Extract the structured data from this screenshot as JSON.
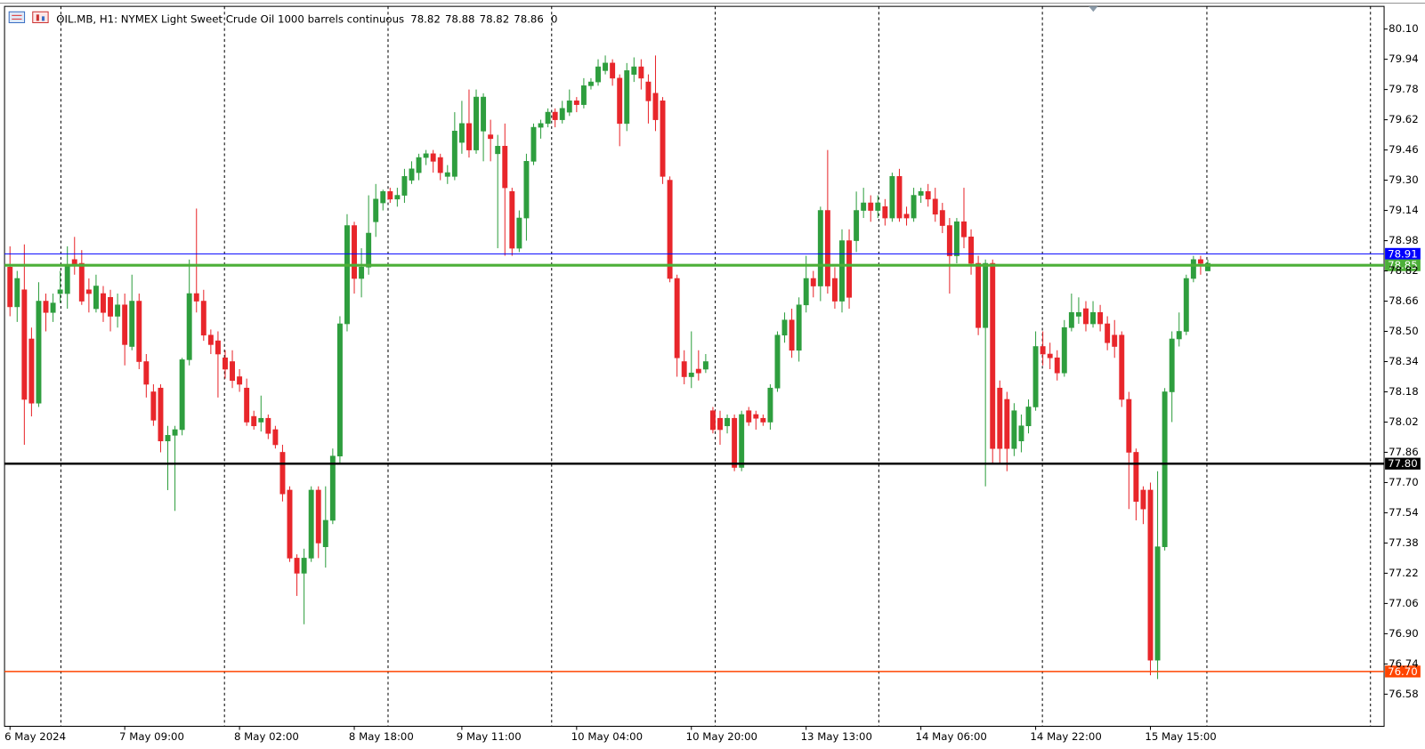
{
  "chart_data": {
    "type": "candlestick",
    "title": "OIL.MB, H1: NYMEX Light Sweet Crude Oil 1000 barrels continuous",
    "header_value": 0,
    "up_color": "#2e9e3e",
    "down_color": "#e8262b",
    "ylim": [
      76.41,
      80.22
    ],
    "yticks": [
      {
        "value": 80.1,
        "label": "80.10"
      },
      79.94,
      79.78,
      79.62,
      79.46,
      {
        "value": 79.3,
        "label": "79.30"
      },
      79.14,
      78.98,
      78.82,
      78.66,
      {
        "value": 78.5,
        "label": "78.50"
      },
      78.34,
      78.18,
      78.02,
      77.86,
      {
        "value": 77.7,
        "label": "77.70"
      },
      77.54,
      77.38,
      77.22,
      77.06,
      {
        "value": 76.9,
        "label": "76.90"
      },
      76.74,
      76.58
    ],
    "levels": [
      {
        "value": 78.91,
        "label": "78.91",
        "color": "#0000ff"
      },
      {
        "value": 78.85,
        "label": "78.85",
        "color": "#4caf38"
      },
      {
        "value": 77.8,
        "label": "77.80",
        "color": "#000000"
      },
      {
        "value": 76.7,
        "label": "76.70",
        "color": "#ff4500"
      }
    ],
    "categories": [
      "6 May 2024",
      null,
      null,
      null,
      null,
      null,
      null,
      null,
      null,
      null,
      null,
      null,
      null,
      null,
      null,
      null,
      "7 May 09:00",
      null,
      null,
      null,
      null,
      null,
      null,
      null,
      null,
      null,
      null,
      null,
      null,
      null,
      null,
      null,
      "8 May 02:00",
      null,
      null,
      null,
      null,
      null,
      null,
      null,
      null,
      null,
      null,
      null,
      null,
      null,
      null,
      null,
      "8 May 18:00",
      null,
      null,
      null,
      null,
      null,
      null,
      null,
      null,
      null,
      null,
      null,
      null,
      null,
      null,
      "9 May 11:00",
      null,
      null,
      null,
      null,
      null,
      null,
      null,
      null,
      null,
      null,
      null,
      null,
      null,
      null,
      null,
      "10 May 04:00",
      null,
      null,
      null,
      null,
      null,
      null,
      null,
      null,
      null,
      null,
      null,
      null,
      null,
      null,
      null,
      "10 May 20:00",
      null,
      null,
      null,
      null,
      null,
      null,
      null,
      null,
      null,
      null,
      null,
      null,
      null,
      null,
      null,
      "13 May 13:00",
      null,
      null,
      null,
      null,
      null,
      null,
      null,
      null,
      null,
      null,
      null,
      null,
      null,
      null,
      null,
      "14 May 06:00",
      null,
      null,
      null,
      null,
      null,
      null,
      null,
      null,
      null,
      null,
      null,
      null,
      null,
      null,
      null,
      "14 May 22:00",
      null,
      null,
      null,
      null,
      null,
      null,
      null,
      null,
      null,
      null,
      null,
      null,
      null,
      null,
      null,
      "15 May 15:00",
      null,
      null,
      null,
      null,
      null,
      null,
      null,
      null
    ],
    "open": [
      78.84,
      78.63,
      78.72,
      78.46,
      78.12,
      78.66,
      78.6,
      78.7,
      78.7,
      78.88,
      78.86,
      78.72,
      78.62,
      78.7,
      78.68,
      78.58,
      78.64,
      78.42,
      78.66,
      78.34,
      78.18,
      78.2,
      77.92,
      77.95,
      77.98,
      78.35,
      78.7,
      78.66,
      78.48,
      78.45,
      78.36,
      78.34,
      78.26,
      78.2,
      78.05,
      78.02,
      78.04,
      77.98,
      77.86,
      77.66,
      77.3,
      77.22,
      77.3,
      77.66,
      77.36,
      77.5,
      77.84,
      78.54,
      79.06,
      78.78,
      78.84,
      79.08,
      79.18,
      79.24,
      79.2,
      79.22,
      79.3,
      79.34,
      79.42,
      79.44,
      79.42,
      79.32,
      79.32,
      79.5,
      79.6,
      79.46,
      79.56,
      79.54,
      79.44,
      79.48,
      79.24,
      78.94,
      79.1,
      79.4,
      79.58,
      79.6,
      79.66,
      79.62,
      79.66,
      79.72,
      79.7,
      79.8,
      79.82,
      79.88,
      79.92,
      79.84,
      79.6,
      79.86,
      79.9,
      79.82,
      79.76,
      79.72,
      79.3,
      78.78,
      78.34,
      78.26,
      78.3,
      78.3,
      78.08,
      78.04,
      78.0,
      78.04,
      77.78,
      78.08,
      78.06,
      78.04,
      78.02,
      78.2,
      78.48,
      78.56,
      78.4,
      78.64,
      78.78,
      78.74,
      79.14,
      78.78,
      78.66,
      78.98,
      78.98,
      79.14,
      79.18,
      79.14,
      79.16,
      79.1,
      79.32,
      79.12,
      79.1,
      79.22,
      79.24,
      79.2,
      79.14,
      79.06,
      78.9,
      79.08,
      79.0,
      78.86,
      78.52,
      78.86,
      78.2,
      78.14,
      77.88,
      77.92,
      78.0,
      78.1,
      78.42,
      78.38,
      78.36,
      78.28,
      78.52,
      78.58,
      78.62,
      78.54,
      78.6,
      78.54,
      78.48,
      78.48,
      78.14,
      77.86,
      77.66,
      77.66,
      76.76,
      77.36,
      78.18,
      78.46,
      78.5,
      78.78,
      78.88,
      78.82
    ],
    "high": [
      78.95,
      78.82,
      78.96,
      78.52,
      78.76,
      78.7,
      78.7,
      78.82,
      78.95,
      79.0,
      78.93,
      78.78,
      78.8,
      78.74,
      78.72,
      78.7,
      78.7,
      78.8,
      78.7,
      78.38,
      78.22,
      78.22,
      78.0,
      78.0,
      78.36,
      78.88,
      79.15,
      78.72,
      78.51,
      78.5,
      78.4,
      78.4,
      78.3,
      78.25,
      78.08,
      78.16,
      78.06,
      78.0,
      77.9,
      77.68,
      77.32,
      77.35,
      77.68,
      77.68,
      77.68,
      77.88,
      78.58,
      79.12,
      79.08,
      78.94,
      79.22,
      79.28,
      79.25,
      79.26,
      79.26,
      79.36,
      79.4,
      79.44,
      79.46,
      79.46,
      79.44,
      79.38,
      79.66,
      79.72,
      79.78,
      79.78,
      79.76,
      79.62,
      79.54,
      79.6,
      79.26,
      79.14,
      79.44,
      79.6,
      79.62,
      79.68,
      79.68,
      79.72,
      79.78,
      79.74,
      79.84,
      79.84,
      79.94,
      79.96,
      79.94,
      79.86,
      79.92,
      79.95,
      79.94,
      79.86,
      79.96,
      79.74,
      79.32,
      78.8,
      78.4,
      78.5,
      78.4,
      78.38,
      78.1,
      78.08,
      78.06,
      78.06,
      78.08,
      78.1,
      78.08,
      78.06,
      78.22,
      78.5,
      78.6,
      78.62,
      78.68,
      78.9,
      78.82,
      79.16,
      79.46,
      78.84,
      79.04,
      79.04,
      79.24,
      79.26,
      79.22,
      79.22,
      79.2,
      79.34,
      79.36,
      79.16,
      79.26,
      79.26,
      79.28,
      79.26,
      79.18,
      79.1,
      79.1,
      79.26,
      79.04,
      78.9,
      78.88,
      78.88,
      78.24,
      78.18,
      78.12,
      78.06,
      78.14,
      78.5,
      78.5,
      78.44,
      78.4,
      78.56,
      78.7,
      78.68,
      78.66,
      78.66,
      78.64,
      78.58,
      78.56,
      78.5,
      78.18,
      77.88,
      77.68,
      77.7,
      77.76,
      78.2,
      78.5,
      78.6,
      78.8,
      78.9,
      78.9,
      78.88
    ],
    "low": [
      78.58,
      78.55,
      77.9,
      78.05,
      78.1,
      78.5,
      78.55,
      78.65,
      78.62,
      78.8,
      78.64,
      78.6,
      78.6,
      78.55,
      78.5,
      78.52,
      78.32,
      78.4,
      78.3,
      78.15,
      78.0,
      77.86,
      77.66,
      77.55,
      77.95,
      78.32,
      78.6,
      78.45,
      78.38,
      78.15,
      78.25,
      78.2,
      78.18,
      78.0,
      77.98,
      77.97,
      77.93,
      77.88,
      77.6,
      77.28,
      77.1,
      76.95,
      77.28,
      77.3,
      77.25,
      77.48,
      77.8,
      78.5,
      78.7,
      78.68,
      78.8,
      79.0,
      79.14,
      79.18,
      79.16,
      79.18,
      79.28,
      79.3,
      79.38,
      79.34,
      79.3,
      79.28,
      79.3,
      79.44,
      79.42,
      79.44,
      79.4,
      79.4,
      78.94,
      78.9,
      78.9,
      78.92,
      78.98,
      79.38,
      79.52,
      79.58,
      79.58,
      79.6,
      79.64,
      79.66,
      79.68,
      79.78,
      79.8,
      79.86,
      79.8,
      79.48,
      79.56,
      79.82,
      79.78,
      79.6,
      79.56,
      79.28,
      78.76,
      78.26,
      78.22,
      78.2,
      78.24,
      78.28,
      77.96,
      77.9,
      77.96,
      77.76,
      77.76,
      78.0,
      77.98,
      78.0,
      77.98,
      78.18,
      78.44,
      78.36,
      78.34,
      78.6,
      78.68,
      78.66,
      78.7,
      78.62,
      78.6,
      78.62,
      78.92,
      79.1,
      79.08,
      79.1,
      79.06,
      79.08,
      79.08,
      79.06,
      79.08,
      79.18,
      79.16,
      79.08,
      79.02,
      78.7,
      78.86,
      78.94,
      78.8,
      78.48,
      77.68,
      77.8,
      77.8,
      77.76,
      77.84,
      77.86,
      77.96,
      78.08,
      78.32,
      78.3,
      78.24,
      78.26,
      78.5,
      78.54,
      78.5,
      78.52,
      78.5,
      78.4,
      78.36,
      78.1,
      77.56,
      77.5,
      77.48,
      76.68,
      76.66,
      77.34,
      78.02,
      78.42,
      78.48,
      78.76,
      78.8,
      78.82
    ],
    "close": [
      78.63,
      78.78,
      78.14,
      78.12,
      78.66,
      78.6,
      78.65,
      78.72,
      78.85,
      78.85,
      78.66,
      78.7,
      78.74,
      78.6,
      78.58,
      78.64,
      78.43,
      78.66,
      78.34,
      78.22,
      78.03,
      77.92,
      77.95,
      77.98,
      78.35,
      78.7,
      78.66,
      78.48,
      78.43,
      78.38,
      78.3,
      78.24,
      78.22,
      78.02,
      78.0,
      78.04,
      77.96,
      77.9,
      77.64,
      77.3,
      77.22,
      77.3,
      77.66,
      77.38,
      77.5,
      77.84,
      78.54,
      79.06,
      78.78,
      78.84,
      79.02,
      79.2,
      79.24,
      79.2,
      79.22,
      79.32,
      79.36,
      79.42,
      79.44,
      79.4,
      79.34,
      79.34,
      79.56,
      79.6,
      79.46,
      79.74,
      79.74,
      79.52,
      79.48,
      79.26,
      78.94,
      79.1,
      79.4,
      79.58,
      79.6,
      79.66,
      79.62,
      79.68,
      79.72,
      79.7,
      79.8,
      79.82,
      79.9,
      79.92,
      79.84,
      79.6,
      79.88,
      79.9,
      79.84,
      79.72,
      79.62,
      79.32,
      78.78,
      78.36,
      78.26,
      78.28,
      78.28,
      78.34,
      77.98,
      77.98,
      78.04,
      77.78,
      78.06,
      78.02,
      78.04,
      78.02,
      78.2,
      78.48,
      78.56,
      78.4,
      78.64,
      78.78,
      78.74,
      79.14,
      78.74,
      78.66,
      78.98,
      78.68,
      79.14,
      79.18,
      79.14,
      79.18,
      79.1,
      79.32,
      79.1,
      79.1,
      79.22,
      79.24,
      79.2,
      79.12,
      79.06,
      78.9,
      79.08,
      79.0,
      78.86,
      78.52,
      78.86,
      77.88,
      77.88,
      77.88,
      78.08,
      78.0,
      78.1,
      78.42,
      78.38,
      78.36,
      78.28,
      78.52,
      78.6,
      78.6,
      78.54,
      78.6,
      78.54,
      78.44,
      78.42,
      78.14,
      77.86,
      77.6,
      77.56,
      76.76,
      77.36,
      78.18,
      78.46,
      78.5,
      78.78,
      78.88,
      78.86,
      78.86
    ]
  }
}
